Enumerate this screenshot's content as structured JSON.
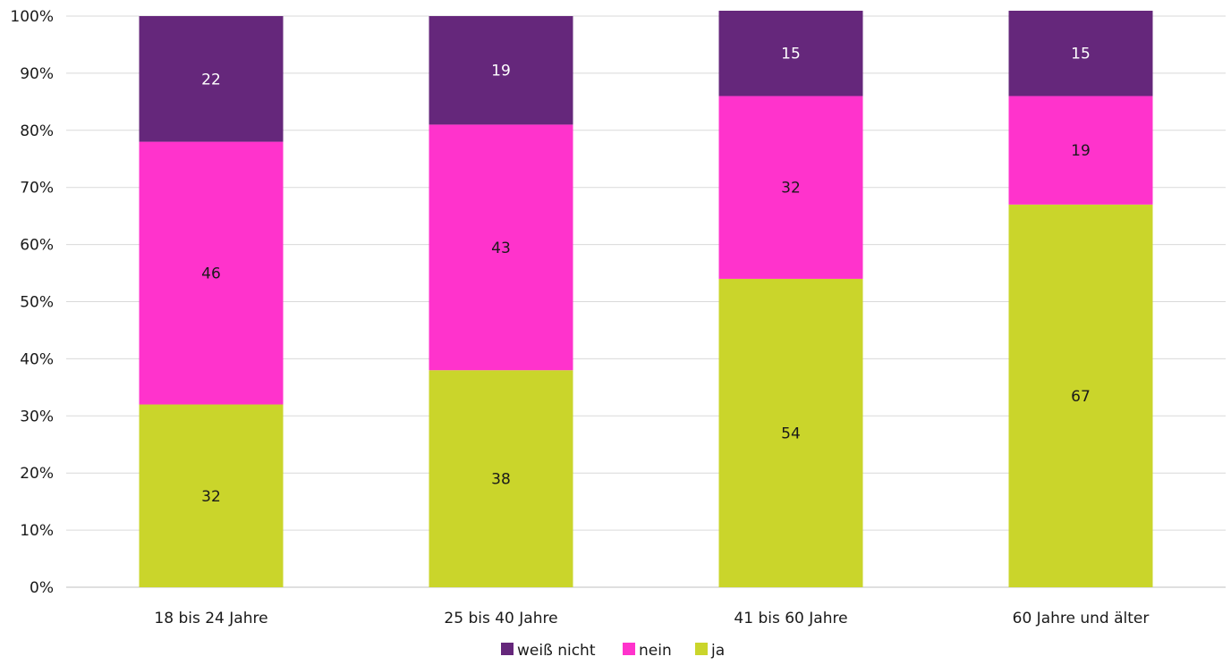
{
  "chart_data": {
    "type": "bar",
    "stacked": true,
    "categories": [
      "18 bis 24 Jahre",
      "25 bis 40 Jahre",
      "41 bis 60 Jahre",
      "60 Jahre und älter"
    ],
    "series": [
      {
        "name": "ja",
        "color": "#cad52b",
        "label_color": "#1a1a1a",
        "values": [
          32,
          38,
          54,
          67
        ]
      },
      {
        "name": "nein",
        "color": "#ff33cc",
        "label_color": "#1a1a1a",
        "values": [
          46,
          43,
          32,
          19
        ]
      },
      {
        "name": "weiß nicht",
        "color": "#65277b",
        "label_color": "#ffffff",
        "values": [
          22,
          19,
          15,
          15
        ]
      }
    ],
    "legend_order": [
      "weiß nicht",
      "nein",
      "ja"
    ],
    "ylim": [
      0,
      100
    ],
    "yticks": [
      "0%",
      "10%",
      "20%",
      "30%",
      "40%",
      "50%",
      "60%",
      "70%",
      "80%",
      "90%",
      "100%"
    ],
    "grid": true,
    "legend_position": "bottom"
  }
}
